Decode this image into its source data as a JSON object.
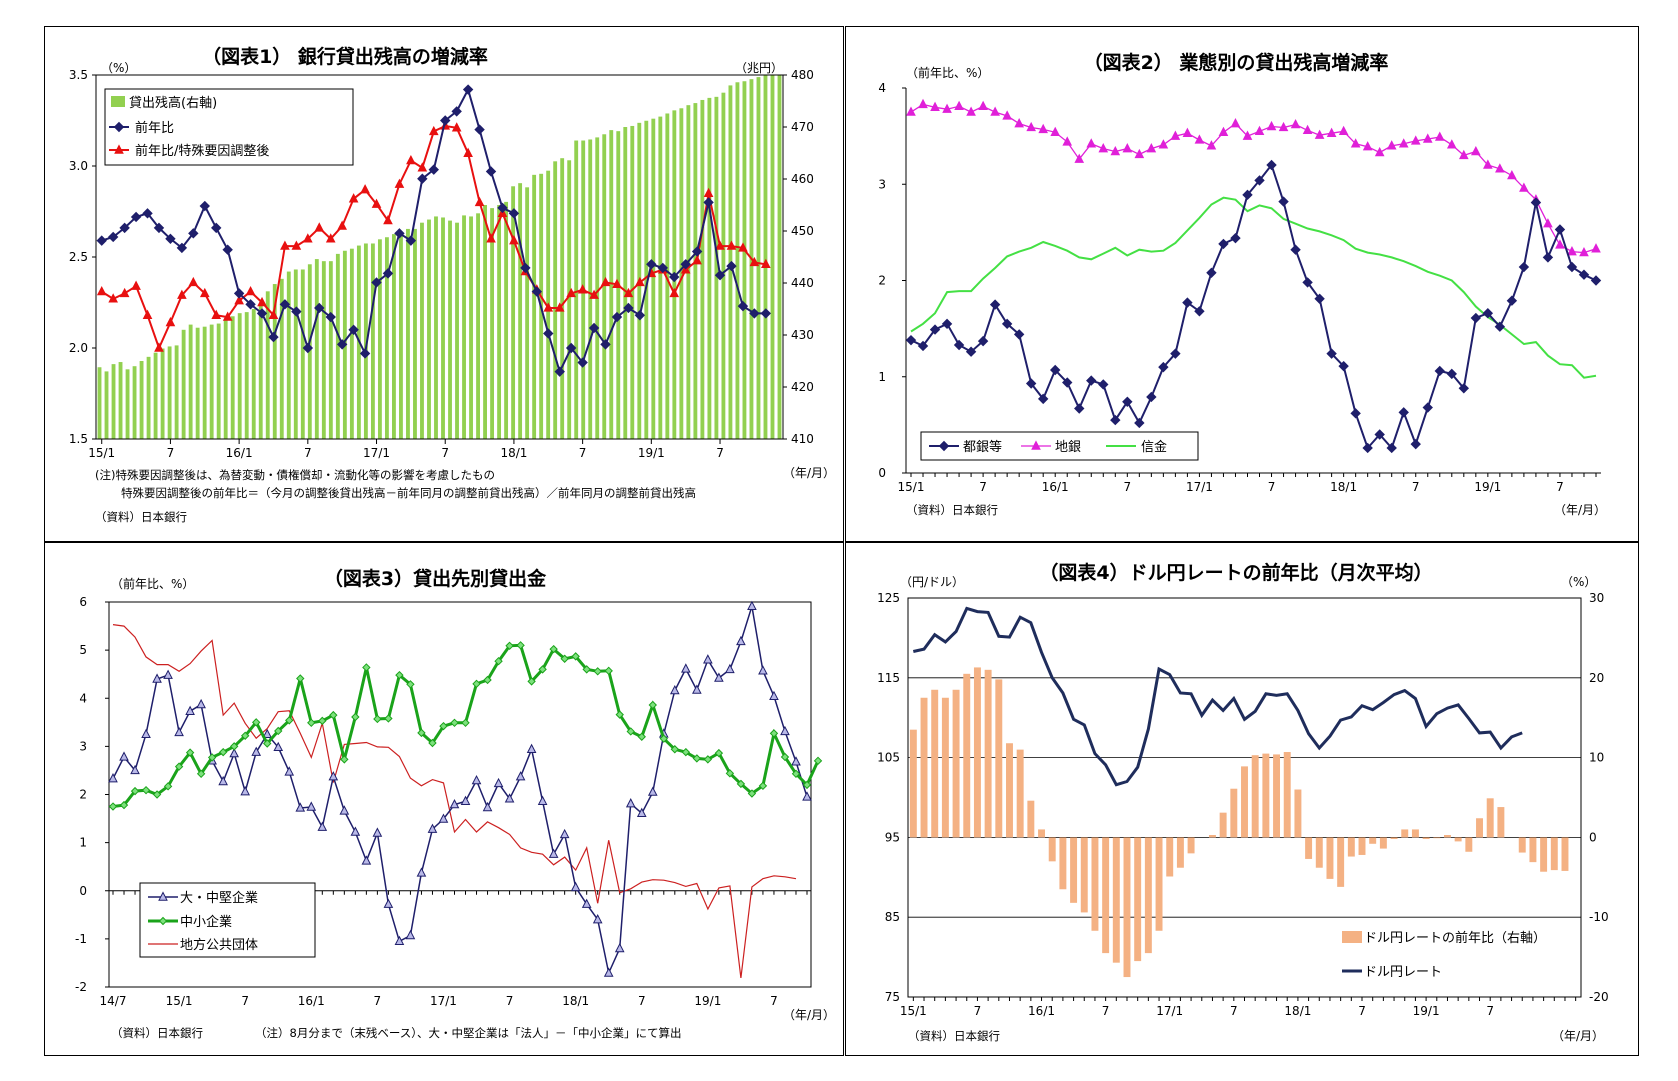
{
  "chart_data": [
    {
      "type": "bar+line",
      "title": "（図表1） 銀行貸出残高の増減率",
      "ylabel_left": "（%）",
      "ylabel_right": "（兆円）",
      "xlabel": "（年/月）",
      "ylim_left": [
        1.5,
        3.5
      ],
      "ylim_right": [
        410,
        480
      ],
      "yticks_left": [
        "3.5",
        "3.0",
        "2.5",
        "2.0",
        "1.5"
      ],
      "yticks_right": [
        "480",
        "470",
        "460",
        "450",
        "440",
        "430",
        "420",
        "410"
      ],
      "xticks": [
        "15/1",
        "7",
        "16/1",
        "7",
        "17/1",
        "7",
        "18/1",
        "7",
        "19/1",
        "7"
      ],
      "x_start": "2015-01",
      "legend": [
        "貸出残高(右軸)",
        "前年比",
        "前年比/特殊要因調整後"
      ],
      "colors": {
        "bars": "#92d050",
        "yoy": "#1f1f6b",
        "adjusted": "#e81010"
      },
      "series": [
        {
          "name": "貸出残高(右軸)",
          "axis": "right",
          "values": [
            423.8,
            423.0,
            424.4,
            424.8,
            423.4,
            424.0,
            425.0,
            425.8,
            426.6,
            427.4,
            427.8,
            428.0,
            431.0,
            432.0,
            431.4,
            431.6,
            432.0,
            432.2,
            432.8,
            433.6,
            434.2,
            434.4,
            435.0,
            436.0,
            438.4,
            439.8,
            440.8,
            442.2,
            442.6,
            442.6,
            443.6,
            444.6,
            444.2,
            444.2,
            445.6,
            446.2,
            446.6,
            447.2,
            447.6,
            447.6,
            448.4,
            448.8,
            449.4,
            449.4,
            450.4,
            450.4,
            451.6,
            452.2,
            452.8,
            452.6,
            452.0,
            451.6,
            453.0,
            452.8,
            453.4,
            455.0,
            454.4,
            455.0,
            455.6,
            458.6,
            459.2,
            458.4,
            460.8,
            461.0,
            461.6,
            463.4,
            464.0,
            463.6,
            467.4,
            467.4,
            467.6,
            468.0,
            468.6,
            469.4,
            469.2,
            470.0,
            470.2,
            470.8,
            471.2,
            471.6,
            472.0,
            472.6,
            473.2,
            473.6,
            474.2,
            474.6,
            475.2,
            475.6,
            475.8,
            476.6,
            478.0,
            478.6,
            478.8,
            479.2,
            479.6,
            480.2,
            480.6,
            481.2
          ]
        },
        {
          "name": "前年比",
          "axis": "left",
          "values": [
            2.59,
            2.61,
            2.66,
            2.72,
            2.74,
            2.66,
            2.6,
            2.55,
            2.63,
            2.78,
            2.66,
            2.54,
            2.3,
            2.24,
            2.19,
            2.06,
            2.24,
            2.2,
            2.0,
            2.22,
            2.17,
            2.02,
            2.1,
            1.97,
            2.36,
            2.41,
            2.63,
            2.59,
            2.93,
            2.98,
            3.25,
            3.3,
            3.42,
            3.2,
            2.97,
            2.77,
            2.74,
            2.44,
            2.31,
            2.08,
            1.87,
            2.0,
            1.92,
            2.11,
            2.02,
            2.17,
            2.22,
            2.18,
            2.46,
            2.44,
            2.39,
            2.46,
            2.53,
            2.8,
            2.4,
            2.45,
            2.23,
            2.19,
            2.19
          ]
        },
        {
          "name": "前年比/特殊要因調整後",
          "axis": "left",
          "values": [
            2.31,
            2.27,
            2.3,
            2.34,
            2.18,
            2.0,
            2.14,
            2.29,
            2.36,
            2.3,
            2.18,
            2.17,
            2.26,
            2.31,
            2.25,
            2.18,
            2.56,
            2.56,
            2.6,
            2.66,
            2.6,
            2.67,
            2.82,
            2.87,
            2.79,
            2.7,
            2.9,
            3.03,
            2.99,
            3.19,
            3.22,
            3.21,
            3.07,
            2.8,
            2.6,
            2.74,
            2.59,
            2.42,
            2.32,
            2.22,
            2.22,
            2.3,
            2.32,
            2.29,
            2.36,
            2.35,
            2.3,
            2.36,
            2.41,
            2.43,
            2.3,
            2.43,
            2.48,
            2.85,
            2.56,
            2.56,
            2.55,
            2.47,
            2.46
          ]
        }
      ],
      "notes": [
        "(注)特殊要因調整後は、為替変動・債権償却・流動化等の影響を考慮したもの",
        "特殊要因調整後の前年比＝（今月の調整後貸出残高－前年同月の調整前貸出残高）／前年同月の調整前貸出残高"
      ],
      "source": "（資料）日本銀行"
    },
    {
      "type": "line",
      "title": "（図表2） 業態別の貸出残高増減率",
      "ylabel": "（前年比、%）",
      "xlabel": "（年/月）",
      "ylim": [
        0,
        4
      ],
      "yticks": [
        "4",
        "3",
        "2",
        "1",
        "0"
      ],
      "xticks": [
        "15/1",
        "7",
        "16/1",
        "7",
        "17/1",
        "7",
        "18/1",
        "7",
        "19/1",
        "7"
      ],
      "x_start": "2015-01",
      "legend": [
        "都銀等",
        "地銀",
        "信金"
      ],
      "colors": {
        "city": "#1f1f6b",
        "regional": "#e020d8",
        "shinkin": "#44e044"
      },
      "series": [
        {
          "name": "都銀等",
          "values": [
            1.38,
            1.32,
            1.49,
            1.55,
            1.33,
            1.26,
            1.37,
            1.75,
            1.55,
            1.44,
            0.93,
            0.77,
            1.07,
            0.94,
            0.67,
            0.96,
            0.92,
            0.55,
            0.74,
            0.52,
            0.79,
            1.1,
            1.24,
            1.77,
            1.68,
            2.08,
            2.38,
            2.44,
            2.89,
            3.04,
            3.2,
            2.82,
            2.32,
            1.98,
            1.81,
            1.24,
            1.11,
            0.62,
            0.26,
            0.4,
            0.26,
            0.63,
            0.3,
            0.68,
            1.06,
            1.03,
            0.88,
            1.61,
            1.66,
            1.52,
            1.79,
            2.14,
            2.81,
            2.24,
            2.53,
            2.14,
            2.06,
            2.0
          ]
        },
        {
          "name": "地銀",
          "values": [
            3.75,
            3.83,
            3.8,
            3.78,
            3.81,
            3.75,
            3.81,
            3.75,
            3.71,
            3.63,
            3.59,
            3.57,
            3.54,
            3.44,
            3.26,
            3.42,
            3.37,
            3.34,
            3.37,
            3.31,
            3.37,
            3.41,
            3.5,
            3.53,
            3.46,
            3.4,
            3.54,
            3.63,
            3.5,
            3.55,
            3.6,
            3.59,
            3.62,
            3.56,
            3.51,
            3.53,
            3.55,
            3.42,
            3.39,
            3.33,
            3.4,
            3.42,
            3.45,
            3.47,
            3.49,
            3.41,
            3.3,
            3.34,
            3.2,
            3.16,
            3.09,
            2.96,
            2.84,
            2.59,
            2.37,
            2.3,
            2.29,
            2.33
          ]
        },
        {
          "name": "信金",
          "values": [
            1.47,
            1.55,
            1.66,
            1.88,
            1.89,
            1.89,
            2.02,
            2.13,
            2.25,
            2.3,
            2.34,
            2.4,
            2.36,
            2.31,
            2.24,
            2.22,
            2.28,
            2.34,
            2.26,
            2.32,
            2.3,
            2.31,
            2.39,
            2.52,
            2.65,
            2.79,
            2.86,
            2.84,
            2.72,
            2.78,
            2.75,
            2.64,
            2.59,
            2.54,
            2.51,
            2.47,
            2.42,
            2.33,
            2.29,
            2.27,
            2.24,
            2.2,
            2.15,
            2.09,
            2.05,
            2.0,
            1.88,
            1.73,
            1.62,
            1.54,
            1.44,
            1.34,
            1.36,
            1.22,
            1.13,
            1.12,
            0.99,
            1.01
          ]
        }
      ],
      "source": "（資料）日本銀行"
    },
    {
      "type": "line",
      "title": "（図表3）貸出先別貸出金",
      "ylabel": "（前年比、%）",
      "xlabel": "（年/月）",
      "ylim": [
        -2,
        6
      ],
      "yticks": [
        "6",
        "5",
        "4",
        "3",
        "2",
        "1",
        "0",
        "-1",
        "-2"
      ],
      "xticks": [
        "14/7",
        "15/1",
        "7",
        "16/1",
        "7",
        "17/1",
        "7",
        "18/1",
        "7",
        "19/1",
        "7"
      ],
      "x_start": "2014-07",
      "legend": [
        "大・中堅企業",
        "中小企業",
        "地方公共団体"
      ],
      "colors": {
        "large": "#1f1f6b",
        "sme": "#1aa31a",
        "sme_marker": "#7de07d",
        "local": "#cc2020"
      },
      "series": [
        {
          "name": "大・中堅企業",
          "values": [
            2.33,
            2.78,
            2.5,
            3.25,
            4.4,
            4.48,
            3.29,
            3.73,
            3.87,
            2.7,
            2.27,
            2.85,
            2.06,
            2.88,
            3.25,
            2.98,
            2.47,
            1.72,
            1.74,
            1.32,
            2.37,
            1.66,
            1.22,
            0.62,
            1.2,
            -0.28,
            -1.05,
            -0.93,
            0.37,
            1.28,
            1.49,
            1.79,
            1.86,
            2.29,
            1.73,
            2.23,
            1.91,
            2.37,
            2.94,
            1.86,
            0.76,
            1.17,
            0.07,
            -0.28,
            -0.6,
            -1.71,
            -1.2,
            1.81,
            1.61,
            2.05,
            3.26,
            4.16,
            4.61,
            4.17,
            4.8,
            4.42,
            4.6,
            5.18,
            5.91,
            4.57,
            4.04,
            3.31,
            2.68,
            1.95
          ]
        },
        {
          "name": "中小企業",
          "values": [
            1.75,
            1.78,
            2.07,
            2.09,
            2.0,
            2.17,
            2.58,
            2.87,
            2.43,
            2.77,
            2.88,
            3.0,
            3.22,
            3.5,
            3.06,
            3.32,
            3.54,
            4.41,
            3.49,
            3.53,
            3.65,
            2.73,
            3.61,
            4.64,
            3.57,
            3.58,
            4.48,
            4.29,
            3.28,
            3.07,
            3.42,
            3.49,
            3.49,
            4.3,
            4.38,
            4.77,
            5.09,
            5.1,
            4.35,
            4.6,
            5.02,
            4.82,
            4.87,
            4.6,
            4.56,
            4.57,
            3.66,
            3.31,
            3.2,
            3.86,
            3.16,
            2.94,
            2.88,
            2.75,
            2.73,
            2.86,
            2.44,
            2.22,
            2.02,
            2.18,
            3.27,
            2.78,
            2.43,
            2.2,
            2.7
          ]
        },
        {
          "name": "地方公共団体",
          "values": [
            5.53,
            5.5,
            5.27,
            4.86,
            4.7,
            4.7,
            4.56,
            4.72,
            4.98,
            5.2,
            3.65,
            3.9,
            3.48,
            3.17,
            3.37,
            3.72,
            3.74,
            3.27,
            2.77,
            3.48,
            2.25,
            3.04,
            3.06,
            3.08,
            2.99,
            2.98,
            2.79,
            2.34,
            2.18,
            2.31,
            2.24,
            1.22,
            1.48,
            1.22,
            1.43,
            1.31,
            1.17,
            0.89,
            0.8,
            0.76,
            0.54,
            0.7,
            0.43,
            0.89,
            -0.26,
            1.05,
            -0.04,
            0.04,
            0.18,
            0.23,
            0.22,
            0.17,
            0.09,
            0.15,
            -0.38,
            0.06,
            0.1,
            -1.81,
            0.08,
            0.25,
            0.31,
            0.29,
            0.25
          ]
        }
      ],
      "notes": [
        "（資料）日本銀行",
        "（注）8月分まで（末残ベース）、大・中堅企業は「法人」－「中小企業」にて算出"
      ]
    },
    {
      "type": "bar+line",
      "title": "（図表4）ドル円レートの前年比（月次平均）",
      "ylabel_left": "（円/ドル）",
      "ylabel_right": "（%）",
      "xlabel": "（年/月）",
      "ylim_left": [
        75,
        125
      ],
      "ylim_right": [
        -20,
        30
      ],
      "yticks_left": [
        "125",
        "115",
        "105",
        "95",
        "85",
        "75"
      ],
      "yticks_right": [
        "30",
        "20",
        "10",
        "0",
        "-10",
        "-20"
      ],
      "xticks": [
        "15/1",
        "7",
        "16/1",
        "7",
        "17/1",
        "7",
        "18/1",
        "7",
        "19/1",
        "7"
      ],
      "x_start": "2015-01",
      "legend": [
        "ドル円レートの前年比（右軸）",
        "ドル円レート"
      ],
      "colors": {
        "bars": "#f4b183",
        "line": "#1f2d5c"
      },
      "series": [
        {
          "name": "ドル円レートの前年比（右軸）",
          "axis": "right",
          "values": [
            13.5,
            17.5,
            18.5,
            17.5,
            18.5,
            20.5,
            21.3,
            21.0,
            19.8,
            11.8,
            11.0,
            4.6,
            1.0,
            -3.0,
            -6.5,
            -8.2,
            -9.4,
            -11.7,
            -14.5,
            -15.7,
            -17.5,
            -15.5,
            -14.5,
            -11.7,
            -4.9,
            -3.8,
            -2.0,
            0,
            0.3,
            3.1,
            6.1,
            8.9,
            10.3,
            10.5,
            10.4,
            10.7,
            6.0,
            -2.7,
            -3.8,
            -5.2,
            -6.2,
            -2.4,
            -2.2,
            -0.8,
            -1.4,
            -0.2,
            1.0,
            1.0,
            -0.2,
            -0.1,
            0.3,
            -0.5,
            -1.8,
            2.4,
            4.9,
            3.8,
            0,
            -1.9,
            -3.1,
            -4.3,
            -4.1,
            -4.2
          ]
        },
        {
          "name": "ドル円レート",
          "axis": "left",
          "values": [
            118.3,
            118.6,
            120.4,
            119.5,
            120.8,
            123.7,
            123.3,
            123.2,
            120.2,
            120.1,
            122.6,
            121.9,
            118.2,
            115.0,
            113.1,
            109.8,
            109.1,
            105.5,
            104.1,
            101.6,
            102.0,
            103.8,
            108.6,
            116.1,
            115.4,
            113.1,
            113.0,
            110.3,
            112.2,
            110.9,
            112.4,
            109.8,
            110.8,
            113.0,
            112.8,
            113.0,
            110.9,
            108.0,
            106.2,
            107.7,
            109.7,
            110.1,
            111.5,
            111.0,
            111.9,
            112.9,
            113.4,
            112.4,
            108.9,
            110.5,
            111.2,
            111.6,
            109.9,
            108.1,
            108.2,
            106.2,
            107.6,
            108.1
          ]
        }
      ],
      "source": "（資料）日本銀行"
    }
  ]
}
